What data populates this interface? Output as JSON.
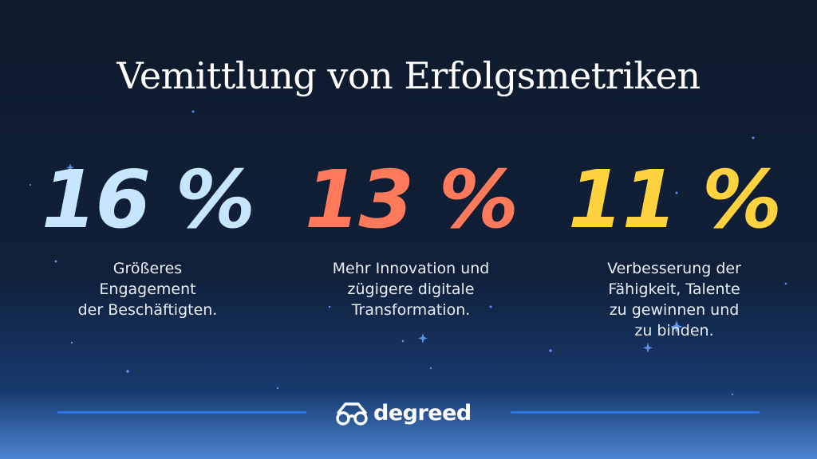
{
  "title": "Vemittlung von Erfolgsmetriken",
  "metrics": [
    {
      "value": "16 %",
      "description": [
        "Größeres",
        "Engagement",
        "der Beschäftigten."
      ],
      "color": "#c6e6ff"
    },
    {
      "value": "13 %",
      "description": [
        "Mehr Innovation und",
        "zügigere digitale",
        "Transformation."
      ],
      "color": "#ff7a5a"
    },
    {
      "value": "11 %",
      "description": [
        "Verbesserung der",
        "Fähigkeit, Talente",
        "zu gewinnen und",
        "zu binden."
      ],
      "color": "#ffd23f"
    }
  ],
  "brand": {
    "name": "degreed",
    "icon": "glasses-logo-icon",
    "accent": "#2f74e6"
  }
}
